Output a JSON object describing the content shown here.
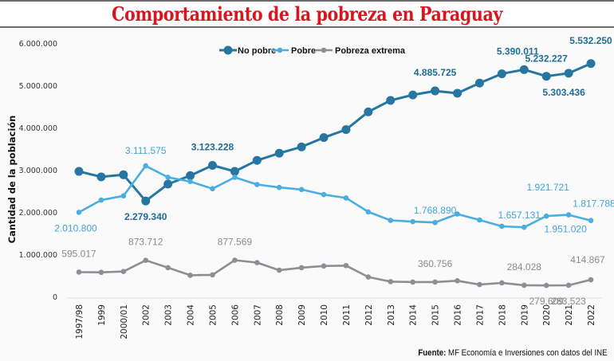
{
  "header": {
    "title": "Comportamiento de la pobreza en Paraguay"
  },
  "source": {
    "label": "Fuente:",
    "text": "MF Economía e Inversiones con datos del INE"
  },
  "chart_data": {
    "type": "line",
    "title": "Comportamiento de la pobreza en Paraguay",
    "xlabel": "",
    "ylabel": "Cantidad de la población",
    "ylim": [
      0,
      6000000
    ],
    "yticks": [
      0,
      1000000,
      2000000,
      3000000,
      4000000,
      5000000,
      6000000
    ],
    "ytick_labels": [
      "0",
      "1.000.000",
      "2.000.000",
      "3.000.000",
      "4.000.000",
      "5.000.000",
      "6.000.000"
    ],
    "grid": false,
    "legend_position": "top-center",
    "categories": [
      "1997/98",
      "1999",
      "2000/01",
      "2002",
      "2003",
      "2004",
      "2005",
      "2006",
      "2007",
      "2008",
      "2009",
      "2010",
      "2011",
      "2012",
      "2013",
      "2014",
      "2015",
      "2016",
      "2017",
      "2018",
      "2019",
      "2020",
      "2021",
      "2022"
    ],
    "series": [
      {
        "name": "No pobre",
        "color": "#2676a1",
        "marker": "large-circle",
        "values": [
          2980000,
          2850000,
          2900000,
          2279340,
          2680000,
          2880000,
          3123228,
          2980000,
          3240000,
          3410000,
          3560000,
          3780000,
          3970000,
          4390000,
          4660000,
          4790000,
          4885725,
          4830000,
          5070000,
          5290000,
          5390011,
          5232227,
          5303436,
          5532250
        ]
      },
      {
        "name": "Pobre",
        "color": "#4aaee0",
        "marker": "small-circle",
        "values": [
          2010800,
          2300000,
          2400000,
          3111575,
          2840000,
          2740000,
          2570000,
          2840000,
          2670000,
          2600000,
          2550000,
          2430000,
          2350000,
          2020000,
          1820000,
          1790000,
          1768890,
          1970000,
          1830000,
          1680000,
          1657131,
          1921721,
          1951020,
          1817788
        ]
      },
      {
        "name": "Pobreza extrema",
        "color": "#8e8e93",
        "marker": "small-circle",
        "values": [
          595017,
          590000,
          610000,
          873712,
          700000,
          520000,
          530000,
          877569,
          820000,
          640000,
          700000,
          740000,
          750000,
          480000,
          370000,
          360000,
          360756,
          390000,
          300000,
          340000,
          284028,
          279609,
          283523,
          414867
        ]
      }
    ],
    "annotations": [
      {
        "series": "No pobre",
        "category": "2002",
        "text": "2.279.340",
        "pos": "below"
      },
      {
        "series": "No pobre",
        "category": "2005",
        "text": "3.123.228",
        "pos": "above"
      },
      {
        "series": "No pobre",
        "category": "2015",
        "text": "4.885.725",
        "pos": "above"
      },
      {
        "series": "No pobre",
        "category": "2019",
        "text": "5.390.011",
        "pos": "above"
      },
      {
        "series": "No pobre",
        "category": "2020",
        "text": "5.232.227",
        "pos": "above-right"
      },
      {
        "series": "No pobre",
        "category": "2021",
        "text": "5.303.436",
        "pos": "below"
      },
      {
        "series": "No pobre",
        "category": "2022",
        "text": "5.532.250",
        "pos": "above"
      },
      {
        "series": "Pobre",
        "category": "1997/98",
        "text": "2.010.800",
        "pos": "below"
      },
      {
        "series": "Pobre",
        "category": "2002",
        "text": "3.111.575",
        "pos": "above"
      },
      {
        "series": "Pobre",
        "category": "2015",
        "text": "1.768.890",
        "pos": "above"
      },
      {
        "series": "Pobre",
        "category": "2019",
        "text": "1.657.131",
        "pos": "above"
      },
      {
        "series": "Pobre",
        "category": "2020",
        "text": "1.921.721",
        "pos": "above-high"
      },
      {
        "series": "Pobre",
        "category": "2021",
        "text": "1.951.020",
        "pos": "below"
      },
      {
        "series": "Pobre",
        "category": "2022",
        "text": "1.817.788",
        "pos": "above"
      },
      {
        "series": "Pobreza extrema",
        "category": "1997/98",
        "text": "595.017",
        "pos": "above"
      },
      {
        "series": "Pobreza extrema",
        "category": "2002",
        "text": "873.712",
        "pos": "above"
      },
      {
        "series": "Pobreza extrema",
        "category": "2006",
        "text": "877.569",
        "pos": "above"
      },
      {
        "series": "Pobreza extrema",
        "category": "2015",
        "text": "360.756",
        "pos": "above"
      },
      {
        "series": "Pobreza extrema",
        "category": "2019",
        "text": "284.028",
        "pos": "above"
      },
      {
        "series": "Pobreza extrema",
        "category": "2020",
        "text": "279,609",
        "pos": "below"
      },
      {
        "series": "Pobreza extrema",
        "category": "2021",
        "text": "283,523",
        "pos": "below"
      },
      {
        "series": "Pobreza extrema",
        "category": "2022",
        "text": "414.867",
        "pos": "above"
      }
    ]
  }
}
